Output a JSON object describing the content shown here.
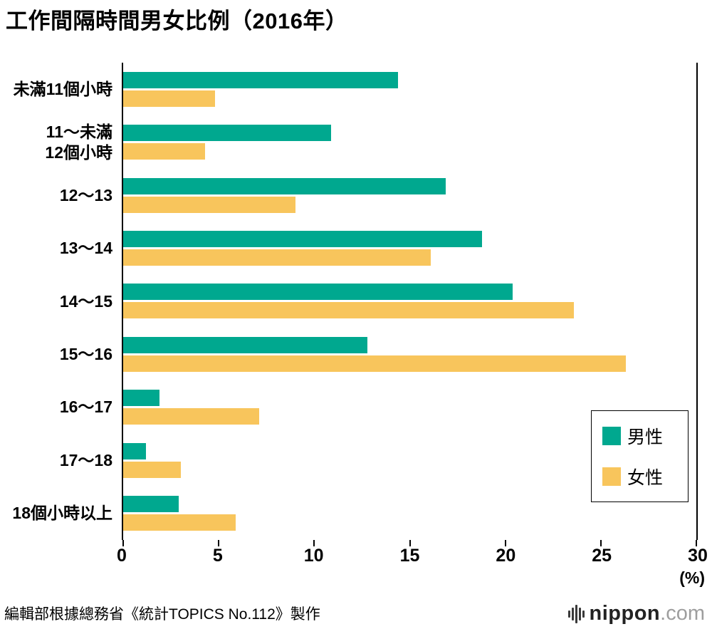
{
  "title": "工作間隔時間男女比例（2016年）",
  "source": "編輯部根據總務省《統計TOPICS No.112》製作",
  "logo": {
    "name": "nippon",
    "tld": ".com"
  },
  "axis": {
    "unit_label": "(%)",
    "ticks": [
      0,
      5,
      10,
      15,
      20,
      25,
      30
    ],
    "max": 30
  },
  "legend": [
    {
      "label": "男性",
      "color": "#00a88f"
    },
    {
      "label": "女性",
      "color": "#f8c55c"
    }
  ],
  "chart_data": {
    "type": "bar",
    "orientation": "horizontal",
    "title": "工作間隔時間男女比例（2016年）",
    "categories": [
      "未滿11個小時",
      "11～未滿\n12個小時",
      "12～13",
      "13～14",
      "14～15",
      "15～16",
      "16～17",
      "17～18",
      "18個小時以上"
    ],
    "series": [
      {
        "name": "男性",
        "color": "#00a88f",
        "values": [
          14.4,
          10.9,
          16.9,
          18.8,
          20.4,
          12.8,
          1.9,
          1.2,
          2.9
        ]
      },
      {
        "name": "女性",
        "color": "#f8c55c",
        "values": [
          4.8,
          4.3,
          9.0,
          16.1,
          23.6,
          26.3,
          7.1,
          3.0,
          5.9
        ]
      }
    ],
    "xlim": [
      0,
      30
    ],
    "xlabel": "(%)",
    "grid": false,
    "legend_position": "right-inside"
  }
}
